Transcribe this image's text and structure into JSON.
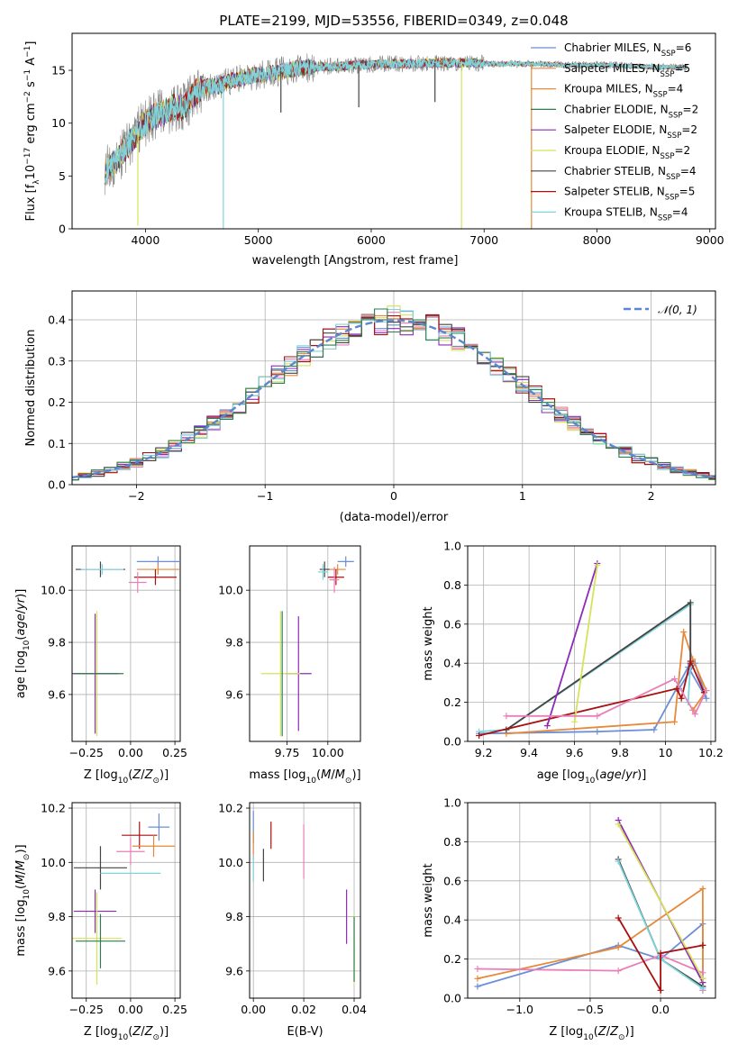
{
  "title": "PLATE=2199, MJD=53556, FIBERID=0349, z=0.048",
  "colors": {
    "chabrier_miles": "#6a8fd8",
    "salpeter_miles": "#e6893a",
    "kroupa_miles": "#e6893a",
    "chabrier_elodie": "#2e7d4f",
    "salpeter_elodie": "#8e2ab8",
    "kroupa_elodie": "#d4e35a",
    "chabrier_stelib": "#444444",
    "salpeter_stelib": "#a81010",
    "kroupa_stelib": "#7fd4dc",
    "pink": "#e87fb8",
    "gauss": "#5b86d0",
    "spectrum_data": "#808080"
  },
  "chart_data": [
    {
      "id": "spectrum",
      "type": "line",
      "title": "PLATE=2199, MJD=53556, FIBERID=0349, z=0.048",
      "xlabel": "wavelength [Angstrom, rest frame]",
      "ylabel": "Flux [f_λ 10^-17 erg cm^-2 s^-1 A^-1]",
      "xlim": [
        3350,
        9050
      ],
      "ylim": [
        0,
        18.5
      ],
      "xticks": [
        4000,
        5000,
        6000,
        7000,
        8000,
        9000
      ],
      "yticks": [
        0,
        5,
        10,
        15
      ],
      "legend_position": "right",
      "legend": [
        {
          "label": "Chabrier MILES, N",
          "sub": "SSP",
          "value": "=6",
          "color_key": "chabrier_miles"
        },
        {
          "label": "Salpeter MILES, N",
          "sub": "SSP",
          "value": "=5",
          "color_key": "salpeter_miles"
        },
        {
          "label": "Kroupa MILES, N",
          "sub": "SSP",
          "value": "=4",
          "color_key": "kroupa_miles"
        },
        {
          "label": "Chabrier ELODIE, N",
          "sub": "SSP",
          "value": "=2",
          "color_key": "chabrier_elodie"
        },
        {
          "label": "Salpeter ELODIE, N",
          "sub": "SSP",
          "value": "=2",
          "color_key": "salpeter_elodie"
        },
        {
          "label": "Kroupa ELODIE, N",
          "sub": "SSP",
          "value": "=2",
          "color_key": "kroupa_elodie"
        },
        {
          "label": "Chabrier STELIB, N",
          "sub": "SSP",
          "value": "=4",
          "color_key": "chabrier_stelib"
        },
        {
          "label": "Salpeter STELIB, N",
          "sub": "SSP",
          "value": "=5",
          "color_key": "salpeter_stelib"
        },
        {
          "label": "Kroupa STELIB, N",
          "sub": "SSP",
          "value": "=4",
          "color_key": "kroupa_stelib"
        }
      ],
      "continuum": {
        "x": [
          3650,
          3750,
          3850,
          3950,
          4050,
          4150,
          4250,
          4350,
          4450,
          4550,
          4650,
          4750,
          4850,
          4950,
          5050,
          5150,
          5250,
          5350,
          5500,
          5700,
          5900,
          6100,
          6300,
          6500,
          6700,
          6900,
          7100,
          7300,
          7500,
          7700,
          7900,
          8100,
          8300,
          8500,
          8700,
          8800
        ],
        "y": [
          5.5,
          6.5,
          8.0,
          9.5,
          10.5,
          11.0,
          11.5,
          11.5,
          13.0,
          13.5,
          13.5,
          14.0,
          14.2,
          14.5,
          14.6,
          14.8,
          15.0,
          15.2,
          15.3,
          15.4,
          15.5,
          15.6,
          15.6,
          15.7,
          15.7,
          15.7,
          15.6,
          15.6,
          15.6,
          15.5,
          15.5,
          15.5,
          15.4,
          15.3,
          15.3,
          15.3
        ]
      },
      "dips": [
        {
          "x": 3933,
          "y": 0.3,
          "color_key": "kroupa_elodie"
        },
        {
          "x": 4690,
          "y": 0.0,
          "color_key": "kroupa_stelib"
        },
        {
          "x": 6800,
          "y": 0.0,
          "color_key": "kroupa_elodie"
        },
        {
          "x": 7420,
          "y": 0.0,
          "color_key": "salpeter_miles"
        },
        {
          "x": 5200,
          "y": 11.0,
          "color_key": "chabrier_stelib"
        },
        {
          "x": 5890,
          "y": 11.5,
          "color_key": "chabrier_stelib"
        },
        {
          "x": 6565,
          "y": 12.0,
          "color_key": "chabrier_stelib"
        }
      ]
    },
    {
      "id": "residuals",
      "type": "histogram",
      "xlabel": "(data-model)/error",
      "ylabel": "Normed distribution",
      "xlim": [
        -2.5,
        2.5
      ],
      "ylim": [
        0,
        0.47
      ],
      "xticks": [
        -2,
        -1,
        0,
        1,
        2
      ],
      "yticks": [
        0.0,
        0.1,
        0.2,
        0.3,
        0.4
      ],
      "grid": true,
      "legend_position": "top-right",
      "legend": [
        {
          "label": "𝒩(0, 1)",
          "color_key": "gauss"
        }
      ],
      "bin_width": 0.1
    },
    {
      "id": "z-age",
      "type": "scatter",
      "xlabel": "Z [log10(Z/Z⊙)]",
      "ylabel": "age [log10(age/yr)]",
      "xlim": [
        -0.33,
        0.28
      ],
      "ylim": [
        9.42,
        10.17
      ],
      "xticks": [
        -0.25,
        0.0,
        0.25
      ],
      "xtick_labels": [
        "−0.25",
        "0.00",
        "0.25"
      ],
      "yticks": [
        9.6,
        9.8,
        10.0
      ],
      "grid": true,
      "points": [
        {
          "x": 0.155,
          "y": 10.11,
          "xerr": 0.12,
          "yerr": 0.02,
          "color_key": "chabrier_miles"
        },
        {
          "x": 0.155,
          "y": 10.08,
          "xerr": 0.12,
          "yerr": 0.02,
          "color_key": "salpeter_miles"
        },
        {
          "x": -0.17,
          "y": 10.08,
          "xerr": 0.14,
          "yerr": 0.03,
          "color_key": "chabrier_stelib"
        },
        {
          "x": 0.14,
          "y": 10.05,
          "xerr": 0.12,
          "yerr": 0.03,
          "color_key": "salpeter_stelib"
        },
        {
          "x": -0.16,
          "y": 10.08,
          "xerr": 0.12,
          "yerr": 0.02,
          "color_key": "kroupa_stelib"
        },
        {
          "x": 0.04,
          "y": 10.03,
          "xerr": 0.05,
          "yerr": 0.04,
          "color_key": "pink"
        },
        {
          "x": -0.19,
          "y": 9.68,
          "xerr": 0.13,
          "yerr": 0.24,
          "color_key": "kroupa_elodie"
        },
        {
          "x": -0.2,
          "y": 9.68,
          "xerr": 0.13,
          "yerr": 0.23,
          "color_key": "salpeter_elodie"
        },
        {
          "x": -0.18,
          "y": 9.68,
          "xerr": 0.14,
          "yerr": 0.0,
          "color_key": "chabrier_elodie"
        }
      ]
    },
    {
      "id": "mass-age",
      "type": "scatter",
      "xlabel": "mass [log10(M/M⊙)]",
      "ylabel": "",
      "xlim": [
        9.52,
        10.2
      ],
      "ylim": [
        9.42,
        10.17
      ],
      "xticks": [
        9.75,
        10.0
      ],
      "xtick_labels": [
        "9.75",
        "10.00"
      ],
      "yticks": [
        9.6,
        9.8,
        10.0
      ],
      "grid": true,
      "points": [
        {
          "x": 10.11,
          "y": 10.11,
          "xerr": 0.05,
          "yerr": 0.02,
          "color_key": "chabrier_miles"
        },
        {
          "x": 10.06,
          "y": 10.08,
          "xerr": 0.05,
          "yerr": 0.02,
          "color_key": "salpeter_miles"
        },
        {
          "x": 10.05,
          "y": 10.05,
          "xerr": 0.05,
          "yerr": 0.03,
          "color_key": "salpeter_stelib"
        },
        {
          "x": 9.98,
          "y": 10.08,
          "xerr": 0.03,
          "yerr": 0.03,
          "color_key": "chabrier_stelib"
        },
        {
          "x": 9.97,
          "y": 10.07,
          "xerr": 0.03,
          "yerr": 0.03,
          "color_key": "kroupa_stelib"
        },
        {
          "x": 10.04,
          "y": 10.04,
          "xerr": 0.03,
          "yerr": 0.05,
          "color_key": "pink"
        },
        {
          "x": 9.82,
          "y": 9.68,
          "xerr": 0.08,
          "yerr": 0.22,
          "color_key": "salpeter_elodie"
        },
        {
          "x": 9.71,
          "y": 9.68,
          "xerr": 0.12,
          "yerr": 0.24,
          "color_key": "kroupa_elodie"
        },
        {
          "x": 9.72,
          "y": 9.68,
          "xerr": 0.0,
          "yerr": 0.24,
          "color_key": "chabrier_elodie"
        }
      ]
    },
    {
      "id": "age-weight",
      "type": "line",
      "xlabel": "age [log10(age/yr)]",
      "ylabel": "mass weight",
      "xlim": [
        9.13,
        10.22
      ],
      "ylim": [
        0,
        1.0
      ],
      "xticks": [
        9.2,
        9.4,
        9.6,
        9.8,
        10.0,
        10.2
      ],
      "yticks": [
        0.0,
        0.2,
        0.4,
        0.6,
        0.8,
        1.0
      ],
      "grid": true,
      "series": [
        {
          "color_key": "chabrier_miles",
          "x": [
            9.18,
            9.7,
            9.95,
            10.1,
            10.18,
            10.13,
            10.06
          ],
          "y": [
            0.04,
            0.05,
            0.06,
            0.38,
            0.22,
            0.4,
            0.27
          ]
        },
        {
          "color_key": "salpeter_miles",
          "x": [
            9.3,
            10.04,
            10.08,
            10.12,
            10.18,
            10.12
          ],
          "y": [
            0.04,
            0.1,
            0.56,
            0.42,
            0.26,
            0.16
          ]
        },
        {
          "color_key": "kroupa_stelib",
          "x": [
            9.18,
            9.3,
            10.11,
            10.11,
            10.1
          ],
          "y": [
            0.05,
            0.06,
            0.7,
            0.4,
            0.2
          ]
        },
        {
          "color_key": "chabrier_stelib",
          "x": [
            9.3,
            10.11,
            10.11
          ],
          "y": [
            0.06,
            0.71,
            0.4
          ]
        },
        {
          "color_key": "salpeter_stelib",
          "x": [
            9.18,
            10.05,
            10.07,
            10.11,
            10.17
          ],
          "y": [
            0.03,
            0.27,
            0.22,
            0.41,
            0.25
          ]
        },
        {
          "color_key": "salpeter_elodie",
          "x": [
            9.48,
            9.7
          ],
          "y": [
            0.08,
            0.91
          ]
        },
        {
          "color_key": "kroupa_elodie",
          "x": [
            9.6,
            9.7
          ],
          "y": [
            0.1,
            0.9
          ]
        },
        {
          "color_key": "pink",
          "x": [
            9.3,
            9.7,
            10.04,
            10.13,
            10.18
          ],
          "y": [
            0.13,
            0.13,
            0.32,
            0.14,
            0.26
          ]
        }
      ]
    },
    {
      "id": "z-mass",
      "type": "scatter",
      "xlabel": "Z [log10(Z/Z⊙)]",
      "ylabel": "mass [log10(M/M⊙)]",
      "xlim": [
        -0.33,
        0.28
      ],
      "ylim": [
        9.5,
        10.22
      ],
      "xticks": [
        -0.25,
        0.0,
        0.25
      ],
      "xtick_labels": [
        "−0.25",
        "0.00",
        "0.25"
      ],
      "yticks": [
        9.6,
        9.8,
        10.0,
        10.2
      ],
      "grid": true,
      "points": [
        {
          "x": 0.16,
          "y": 10.13,
          "xerr": 0.06,
          "yerr": 0.05,
          "color_key": "chabrier_miles"
        },
        {
          "x": 0.05,
          "y": 10.1,
          "xerr": 0.1,
          "yerr": 0.05,
          "color_key": "salpeter_stelib"
        },
        {
          "x": 0.13,
          "y": 10.06,
          "xerr": 0.12,
          "yerr": 0.04,
          "color_key": "salpeter_miles"
        },
        {
          "x": 0.0,
          "y": 10.04,
          "xerr": 0.08,
          "yerr": 0.05,
          "color_key": "pink"
        },
        {
          "x": -0.17,
          "y": 9.98,
          "xerr": 0.15,
          "yerr": 0.08,
          "color_key": "chabrier_stelib"
        },
        {
          "x": 0.0,
          "y": 9.96,
          "xerr": 0.17,
          "yerr": 0.0,
          "color_key": "kroupa_stelib"
        },
        {
          "x": -0.2,
          "y": 9.82,
          "xerr": 0.12,
          "yerr": 0.08,
          "color_key": "salpeter_elodie"
        },
        {
          "x": -0.19,
          "y": 9.72,
          "xerr": 0.14,
          "yerr": 0.17,
          "color_key": "kroupa_elodie"
        },
        {
          "x": -0.17,
          "y": 9.71,
          "xerr": 0.14,
          "yerr": 0.1,
          "color_key": "chabrier_elodie"
        }
      ]
    },
    {
      "id": "ebv-mass",
      "type": "scatter",
      "xlabel": "E(B-V)",
      "ylabel": "",
      "xlim": [
        -0.0015,
        0.0425
      ],
      "ylim": [
        9.5,
        10.22
      ],
      "xticks": [
        0.0,
        0.02,
        0.04
      ],
      "xtick_labels": [
        "0.00",
        "0.02",
        "0.04"
      ],
      "yticks": [
        9.6,
        9.8,
        10.0,
        10.2
      ],
      "grid": true,
      "points": [
        {
          "x": 0.0,
          "y": 10.13,
          "xerr": 0.0,
          "yerr": 0.06,
          "color_key": "chabrier_miles"
        },
        {
          "x": 0.0,
          "y": 10.06,
          "xerr": 0.0,
          "yerr": 0.05,
          "color_key": "salpeter_miles"
        },
        {
          "x": 0.007,
          "y": 10.1,
          "xerr": 0.0,
          "yerr": 0.05,
          "color_key": "salpeter_stelib"
        },
        {
          "x": 0.004,
          "y": 9.99,
          "xerr": 0.0,
          "yerr": 0.06,
          "color_key": "chabrier_stelib"
        },
        {
          "x": 0.0,
          "y": 9.98,
          "xerr": 0.0,
          "yerr": 0.05,
          "color_key": "kroupa_stelib"
        },
        {
          "x": 0.02,
          "y": 10.04,
          "xerr": 0.0,
          "yerr": 0.1,
          "color_key": "pink"
        },
        {
          "x": 0.037,
          "y": 9.8,
          "xerr": 0.0,
          "yerr": 0.1,
          "color_key": "salpeter_elodie"
        },
        {
          "x": 0.04,
          "y": 9.68,
          "xerr": 0.0,
          "yerr": 0.13,
          "color_key": "kroupa_elodie"
        },
        {
          "x": 0.04,
          "y": 9.68,
          "xerr": 0.0,
          "yerr": 0.12,
          "color_key": "chabrier_elodie"
        }
      ]
    },
    {
      "id": "z-weight",
      "type": "line",
      "xlabel": "Z [log10(Z/Z⊙)]",
      "ylabel": "mass weight",
      "xlim": [
        -1.37,
        0.39
      ],
      "ylim": [
        0,
        1.0
      ],
      "xticks": [
        -1.0,
        -0.5,
        0.0
      ],
      "xtick_labels": [
        "−1.0",
        "−0.5",
        "0.0"
      ],
      "yticks": [
        0.0,
        0.2,
        0.4,
        0.6,
        0.8,
        1.0
      ],
      "grid": true,
      "series": [
        {
          "color_key": "chabrier_miles",
          "x": [
            -1.3,
            -0.3,
            0.0,
            0.3,
            0.3,
            0.3
          ],
          "y": [
            0.06,
            0.27,
            0.2,
            0.38,
            0.06,
            0.04
          ]
        },
        {
          "color_key": "salpeter_miles",
          "x": [
            -1.3,
            -0.3,
            0.3,
            0.3,
            0.3
          ],
          "y": [
            0.1,
            0.26,
            0.56,
            0.27,
            0.1
          ]
        },
        {
          "color_key": "pink",
          "x": [
            -1.3,
            -0.3,
            0.0,
            0.3,
            0.3
          ],
          "y": [
            0.15,
            0.14,
            0.22,
            0.13,
            0.04
          ]
        },
        {
          "color_key": "salpeter_elodie",
          "x": [
            -0.3,
            0.3
          ],
          "y": [
            0.91,
            0.08
          ]
        },
        {
          "color_key": "kroupa_elodie",
          "x": [
            -0.3,
            0.3
          ],
          "y": [
            0.89,
            0.1
          ]
        },
        {
          "color_key": "chabrier_stelib",
          "x": [
            -0.3,
            0.0,
            0.3
          ],
          "y": [
            0.71,
            0.2,
            0.06
          ]
        },
        {
          "color_key": "kroupa_stelib",
          "x": [
            -0.3,
            0.0,
            0.3
          ],
          "y": [
            0.7,
            0.2,
            0.05
          ]
        },
        {
          "color_key": "salpeter_stelib",
          "x": [
            -0.3,
            0.0,
            0.0,
            0.3
          ],
          "y": [
            0.41,
            0.04,
            0.23,
            0.27
          ]
        }
      ]
    }
  ]
}
